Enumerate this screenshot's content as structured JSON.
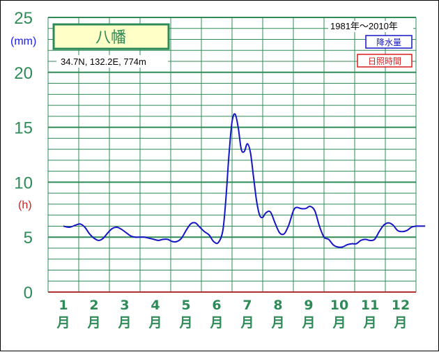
{
  "chart_data": {
    "type": "line",
    "title": "八幡",
    "coords": "34.7N,  132.2E,  774m",
    "period": "1981年～2010年",
    "unit_left": "(mm)",
    "unit_right": "(h)",
    "ylim": [
      0,
      25
    ],
    "y_ticks": [
      "0",
      "5",
      "10",
      "15",
      "20",
      "25"
    ],
    "months": [
      "1",
      "2",
      "3",
      "4",
      "5",
      "6",
      "7",
      "8",
      "9",
      "10",
      "11",
      "12"
    ],
    "month_suffix": "月",
    "legend": [
      "降水量",
      "日照時間"
    ],
    "colors": {
      "precip": "#1414c8",
      "sunshine": "#d81b1b",
      "grid": "#2e8b57",
      "title_bg": "#ffffc8"
    },
    "series": [
      {
        "name": "降水量",
        "x": [
          1.0,
          1.2,
          1.4,
          1.55,
          1.7,
          1.85,
          2.0,
          2.15,
          2.3,
          2.45,
          2.6,
          2.75,
          2.9,
          3.05,
          3.2,
          3.35,
          3.5,
          3.65,
          3.8,
          3.95,
          4.1,
          4.25,
          4.4,
          4.55,
          4.7,
          4.85,
          5.0,
          5.15,
          5.3,
          5.45,
          5.6,
          5.75,
          5.9,
          6.05,
          6.2,
          6.3,
          6.4,
          6.5,
          6.6,
          6.7,
          6.8,
          6.9,
          7.0,
          7.1,
          7.2,
          7.3,
          7.4,
          7.5,
          7.6,
          7.75,
          7.9,
          8.05,
          8.2,
          8.35,
          8.5,
          8.6,
          8.75,
          8.9,
          9.05,
          9.2,
          9.35,
          9.5,
          9.65,
          9.8,
          9.95,
          10.1,
          10.25,
          10.4,
          10.55,
          10.7,
          10.85,
          11.0,
          11.15,
          11.3,
          11.45,
          11.6,
          11.75,
          11.9,
          12.05,
          12.2,
          12.35,
          12.5,
          12.65,
          12.8
        ],
        "values": [
          6.0,
          5.9,
          6.1,
          6.2,
          5.9,
          5.3,
          4.9,
          4.7,
          4.9,
          5.4,
          5.8,
          5.9,
          5.7,
          5.4,
          5.1,
          5.0,
          5.0,
          5.0,
          4.9,
          4.8,
          4.7,
          4.8,
          4.8,
          4.6,
          4.6,
          4.9,
          5.6,
          6.2,
          6.3,
          5.9,
          5.5,
          5.2,
          4.6,
          4.5,
          5.6,
          8.5,
          12.5,
          15.5,
          16.2,
          15.0,
          13.0,
          12.8,
          13.5,
          12.7,
          10.5,
          8.3,
          7.0,
          6.8,
          7.2,
          7.3,
          6.3,
          5.4,
          5.3,
          6.1,
          7.4,
          7.7,
          7.6,
          7.6,
          7.8,
          7.4,
          6.0,
          5.0,
          4.8,
          4.3,
          4.1,
          4.1,
          4.3,
          4.4,
          4.4,
          4.7,
          4.8,
          4.7,
          4.8,
          5.5,
          6.1,
          6.3,
          6.1,
          5.6,
          5.5,
          5.6,
          5.9,
          6.0,
          6.0,
          6.0
        ]
      }
    ]
  }
}
